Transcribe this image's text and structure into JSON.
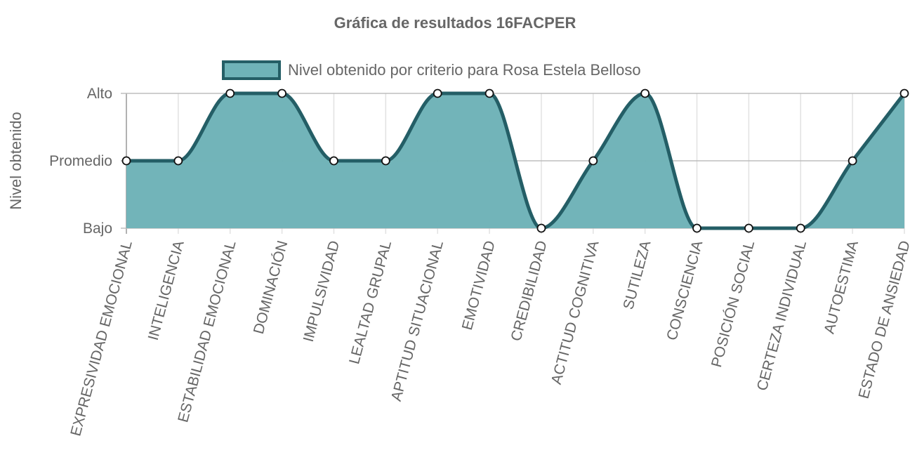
{
  "chart_data": {
    "type": "area",
    "title": "Gráfica de resultados 16FACPER",
    "ylabel": "Nivel obtenido",
    "xlabel": "",
    "y_categories": [
      "Bajo",
      "Promedio",
      "Alto"
    ],
    "ylim": [
      0,
      2
    ],
    "grid": true,
    "legend_position": "top",
    "categories": [
      "EXPRESIVIDAD EMOCIONAL",
      "INTELIGENCIA",
      "ESTABILIDAD EMOCIONAL",
      "DOMINACIÓN",
      "IMPULSIVIDAD",
      "LEALTAD GRUPAL",
      "APTITUD SITUACIONAL",
      "EMOTIVIDAD",
      "CREDIBILIDAD",
      "ACTITUD COGNITIVA",
      "SUTILEZA",
      "CONSCIENCIA",
      "POSICIÓN SOCIAL",
      "CERTEZA INDIVIDUAL",
      "AUTOESTIMA",
      "ESTADO DE ANSIEDAD"
    ],
    "series": [
      {
        "name": "Nivel obtenido por criterio para Rosa Estela Belloso",
        "values": [
          1,
          1,
          2,
          2,
          1,
          1,
          2,
          2,
          0,
          1,
          2,
          0,
          0,
          0,
          1,
          2
        ],
        "fill_color": "#6fb3b8",
        "line_color": "#245e66"
      }
    ]
  }
}
